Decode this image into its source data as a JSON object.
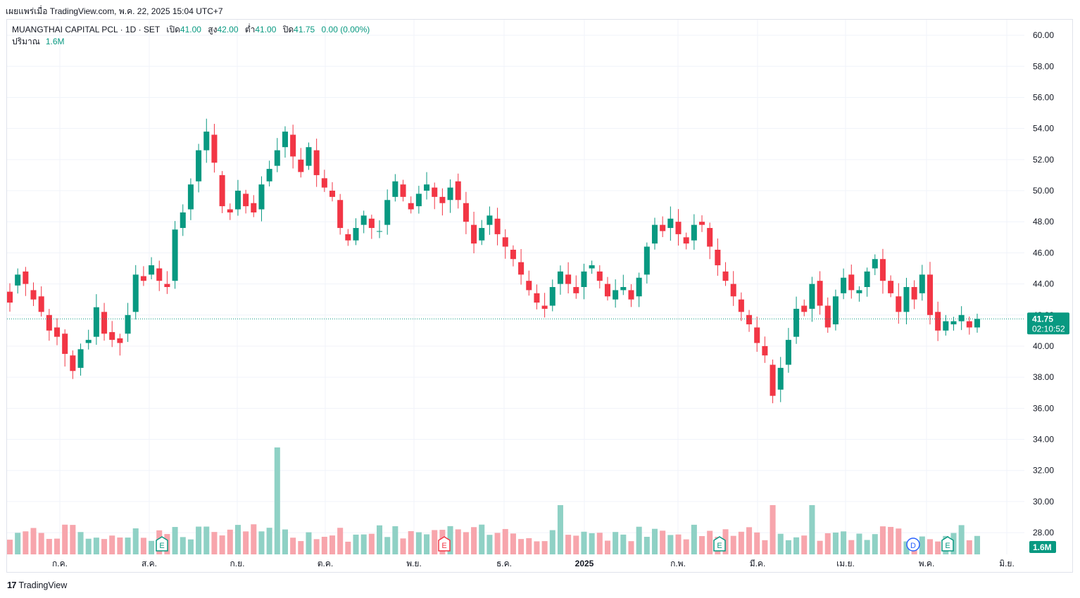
{
  "caption": "เผยแพร่เมื่อ TradingView.com, พ.ค. 22, 2025 15:04 UTC+7",
  "legend": {
    "symbol": "MUANGTHAI CAPITAL PCL · 1D · SET",
    "open_label": "เปิด",
    "open": "41.00",
    "high_label": "สูง",
    "high": "42.00",
    "low_label": "ต่ำ",
    "low": "41.00",
    "close_label": "ปิด",
    "close": "41.75",
    "change": "0.00 (0.00%)",
    "volume_label": "ปริมาณ",
    "volume": "1.6M"
  },
  "footer": {
    "logo_mark": "17",
    "brand": "TradingView"
  },
  "colors": {
    "up": "#089981",
    "down": "#f23645",
    "up_vol": "#8fd1c5",
    "down_vol": "#f7a5ac",
    "grid": "#f0f3fa",
    "axis_text": "#131722"
  },
  "chart_data": {
    "type": "candlestick",
    "interval": "1D",
    "y_axis_ticks": [
      "60.00",
      "58.00",
      "56.00",
      "54.00",
      "52.00",
      "50.00",
      "48.00",
      "46.00",
      "44.00",
      "42.00",
      "40.00",
      "38.00",
      "36.00",
      "34.00",
      "32.00",
      "30.00",
      "28.00"
    ],
    "ylim": [
      26.6,
      61.0
    ],
    "x_axis_labels": [
      "ก.ค.",
      "ส.ค.",
      "ก.ย.",
      "ต.ค.",
      "พ.ย.",
      "ธ.ค.",
      "2025",
      "ก.พ.",
      "มี.ค.",
      "เม.ย.",
      "พ.ค.",
      "มิ.ย."
    ],
    "last_price": "41.75",
    "countdown": "02:10:52",
    "last_volume": "1.6M",
    "event_markers": [
      {
        "label": "E",
        "color": "#089981",
        "x_label": "ส.ค."
      },
      {
        "label": "E",
        "color": "#f23645",
        "x_label": "พ.ย."
      },
      {
        "label": "E",
        "color": "#089981",
        "x_label": "ก.พ."
      },
      {
        "label": "D",
        "color": "#2962ff",
        "x_label": "พ.ค."
      },
      {
        "label": "E",
        "color": "#089981",
        "x_label": "พ.ค."
      }
    ],
    "price_path": [
      [
        43.5,
        42.8
      ],
      [
        43.9,
        44.6
      ],
      [
        44.8,
        44.0
      ],
      [
        43.6,
        43.0
      ],
      [
        43.2,
        42.2
      ],
      [
        42.0,
        41.0
      ],
      [
        41.2,
        40.6
      ],
      [
        40.8,
        39.5
      ],
      [
        39.4,
        38.4
      ],
      [
        38.6,
        39.8
      ],
      [
        40.2,
        40.4
      ],
      [
        40.6,
        42.5
      ],
      [
        42.2,
        40.8
      ],
      [
        40.9,
        40.4
      ],
      [
        40.5,
        40.2
      ],
      [
        40.8,
        42.0
      ],
      [
        42.2,
        44.6
      ],
      [
        44.5,
        44.2
      ],
      [
        44.6,
        45.2
      ],
      [
        45.0,
        44.2
      ],
      [
        44.0,
        43.8
      ],
      [
        44.2,
        47.5
      ],
      [
        47.6,
        48.6
      ],
      [
        48.8,
        50.4
      ],
      [
        50.6,
        52.6
      ],
      [
        52.6,
        53.8
      ],
      [
        53.6,
        51.8
      ],
      [
        51.0,
        49.0
      ],
      [
        48.8,
        48.6
      ],
      [
        48.8,
        50.0
      ],
      [
        49.8,
        49.0
      ],
      [
        49.2,
        48.6
      ],
      [
        48.8,
        50.4
      ],
      [
        50.6,
        51.4
      ],
      [
        51.6,
        52.6
      ],
      [
        52.8,
        53.8
      ],
      [
        53.6,
        52.2
      ],
      [
        52.0,
        51.2
      ],
      [
        51.6,
        52.8
      ],
      [
        52.6,
        51.0
      ],
      [
        50.8,
        50.2
      ],
      [
        50.0,
        49.6
      ],
      [
        49.4,
        47.6
      ],
      [
        47.2,
        46.8
      ],
      [
        46.8,
        47.6
      ],
      [
        47.8,
        48.4
      ],
      [
        48.2,
        47.6
      ],
      [
        47.4,
        47.4
      ],
      [
        47.8,
        49.4
      ],
      [
        49.6,
        50.6
      ],
      [
        50.4,
        49.6
      ],
      [
        49.2,
        48.8
      ],
      [
        49.0,
        49.8
      ],
      [
        50.0,
        50.4
      ],
      [
        50.2,
        49.6
      ],
      [
        49.6,
        49.2
      ],
      [
        49.4,
        50.2
      ],
      [
        50.6,
        49.4
      ],
      [
        49.2,
        48.0
      ],
      [
        47.8,
        46.6
      ],
      [
        46.8,
        47.6
      ],
      [
        47.8,
        48.4
      ],
      [
        48.2,
        47.2
      ],
      [
        47.0,
        46.4
      ],
      [
        46.2,
        45.6
      ],
      [
        45.4,
        44.6
      ],
      [
        44.2,
        43.6
      ],
      [
        43.4,
        42.8
      ],
      [
        42.6,
        42.4
      ],
      [
        42.6,
        43.8
      ],
      [
        44.0,
        44.8
      ],
      [
        44.6,
        44.0
      ],
      [
        43.8,
        43.4
      ],
      [
        43.8,
        44.8
      ],
      [
        45.0,
        45.2
      ],
      [
        44.8,
        44.2
      ],
      [
        44.0,
        43.2
      ],
      [
        43.0,
        43.6
      ],
      [
        43.6,
        43.8
      ],
      [
        43.6,
        43.0
      ],
      [
        43.2,
        44.4
      ],
      [
        44.6,
        46.4
      ],
      [
        46.6,
        47.8
      ],
      [
        47.8,
        47.4
      ],
      [
        47.6,
        48.2
      ],
      [
        48.0,
        47.2
      ],
      [
        47.0,
        46.6
      ],
      [
        46.8,
        47.8
      ],
      [
        48.0,
        47.8
      ],
      [
        47.6,
        46.4
      ],
      [
        46.2,
        45.2
      ],
      [
        44.8,
        44.2
      ],
      [
        44.0,
        43.2
      ],
      [
        43.0,
        42.2
      ],
      [
        42.0,
        41.4
      ],
      [
        41.2,
        40.2
      ],
      [
        40.0,
        39.4
      ],
      [
        38.8,
        36.8
      ],
      [
        37.2,
        38.6
      ],
      [
        38.8,
        40.4
      ],
      [
        40.6,
        42.4
      ],
      [
        42.6,
        42.2
      ],
      [
        42.4,
        44.0
      ],
      [
        44.2,
        42.6
      ],
      [
        42.6,
        41.2
      ],
      [
        41.4,
        43.2
      ],
      [
        43.4,
        44.4
      ],
      [
        44.6,
        43.6
      ],
      [
        43.4,
        43.6
      ],
      [
        43.8,
        44.8
      ],
      [
        45.0,
        45.6
      ],
      [
        45.6,
        44.2
      ],
      [
        44.2,
        43.4
      ],
      [
        43.2,
        42.2
      ],
      [
        42.2,
        43.8
      ],
      [
        43.8,
        43.0
      ],
      [
        43.4,
        44.6
      ],
      [
        44.6,
        42.0
      ],
      [
        42.2,
        41.0
      ],
      [
        41.0,
        41.6
      ],
      [
        41.4,
        41.6
      ],
      [
        41.6,
        42.0
      ],
      [
        41.6,
        41.2
      ],
      [
        41.2,
        41.75
      ]
    ]
  }
}
